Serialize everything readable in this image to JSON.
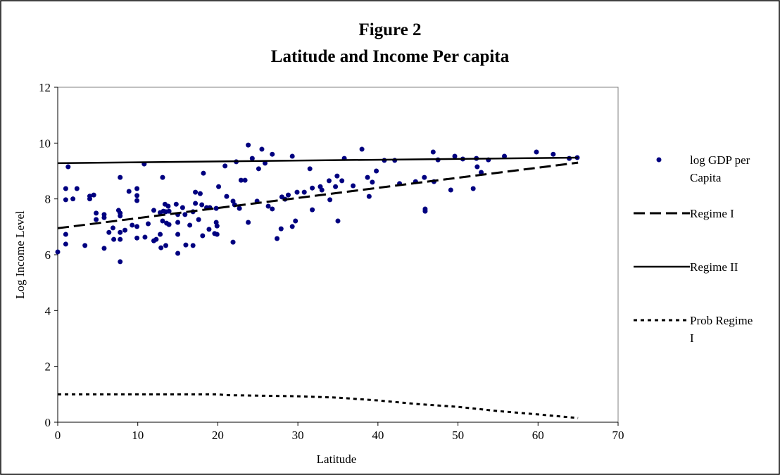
{
  "chart_data": {
    "type": "scatter",
    "title": "Figure 2",
    "subtitle": "Latitude and Income Per capita",
    "x_label": "Latitude",
    "y_label": "Log Income Level",
    "xlim": [
      0,
      70
    ],
    "xticks": [
      0,
      10,
      20,
      30,
      40,
      50,
      60,
      70
    ],
    "ylim": [
      0,
      12
    ],
    "yticks": [
      0,
      2,
      4,
      6,
      8,
      10,
      12
    ],
    "grid": false,
    "legend": "right",
    "series": [
      {
        "name": "log GDP per Capita",
        "kind": "scatter",
        "color": "#000080",
        "x": [
          0,
          1.0,
          1.0,
          1.0,
          1.0,
          1.3,
          1.9,
          2.4,
          3.4,
          4.0,
          4.0,
          4.5,
          4.8,
          4.8,
          5.8,
          5.8,
          5.8,
          6.4,
          6.9,
          7.0,
          7.6,
          7.8,
          7.8,
          7.8,
          7.8,
          7.8,
          7.8,
          8.4,
          8.9,
          9.3,
          9.9,
          9.9,
          9.9,
          9.9,
          9.9,
          10.8,
          10.9,
          11.3,
          12.0,
          12.0,
          12.3,
          12.8,
          12.8,
          12.9,
          13.1,
          13.1,
          13.2,
          13.4,
          13.5,
          13.5,
          13.6,
          13.8,
          13.9,
          13.9,
          14.8,
          15.0,
          15.0,
          15.0,
          15.0,
          15.6,
          15.9,
          16.0,
          16.5,
          16.9,
          16.9,
          17.2,
          17.2,
          17.6,
          17.8,
          18.0,
          18.1,
          18.2,
          18.6,
          18.9,
          19.0,
          19.6,
          19.8,
          19.8,
          19.9,
          19.9,
          20.1,
          20.9,
          21.1,
          21.9,
          21.9,
          22.1,
          22.3,
          22.7,
          22.9,
          23.4,
          23.8,
          23.8,
          24.3,
          24.9,
          25.1,
          25.5,
          25.9,
          26.3,
          26.8,
          26.8,
          27.4,
          27.9,
          28.0,
          28.4,
          28.8,
          29.3,
          29.3,
          29.7,
          29.9,
          30.8,
          31.5,
          31.8,
          31.8,
          32.8,
          33.0,
          33.9,
          34.0,
          34.7,
          34.9,
          35.0,
          35.5,
          35.8,
          36.9,
          38.0,
          38.7,
          38.9,
          39.3,
          39.8,
          40.8,
          42.1,
          42.7,
          44.7,
          45.8,
          45.9,
          45.9,
          46.9,
          47.0,
          47.5,
          49.1,
          49.6,
          50.6,
          51.9,
          52.3,
          52.4,
          52.9,
          53.8,
          55.8,
          59.8,
          61.9,
          63.9,
          64.9
        ],
        "values": [
          6.1,
          8.37,
          7.97,
          6.73,
          6.38,
          9.15,
          8.0,
          8.37,
          6.33,
          8.1,
          8.0,
          8.14,
          7.49,
          7.26,
          7.44,
          7.33,
          6.23,
          6.8,
          6.96,
          6.55,
          7.59,
          8.77,
          7.49,
          7.39,
          6.8,
          6.55,
          5.75,
          6.88,
          8.27,
          7.06,
          8.37,
          8.12,
          7.94,
          7.01,
          6.6,
          9.25,
          6.63,
          7.11,
          6.5,
          7.59,
          6.55,
          7.51,
          6.73,
          6.25,
          8.77,
          7.21,
          7.56,
          7.81,
          7.54,
          6.33,
          7.13,
          7.74,
          7.56,
          7.08,
          7.81,
          7.44,
          6.73,
          6.05,
          7.16,
          7.69,
          7.44,
          6.35,
          7.06,
          7.54,
          6.33,
          8.24,
          7.84,
          7.26,
          8.19,
          7.79,
          6.68,
          8.92,
          7.69,
          6.91,
          7.69,
          6.76,
          7.66,
          7.16,
          7.03,
          6.73,
          8.44,
          9.18,
          8.09,
          7.92,
          6.45,
          7.79,
          9.33,
          7.66,
          8.67,
          8.67,
          9.93,
          7.16,
          9.45,
          7.92,
          9.08,
          9.78,
          9.28,
          7.74,
          9.6,
          7.64,
          6.58,
          6.93,
          8.07,
          7.99,
          8.14,
          7.01,
          9.53,
          7.21,
          8.24,
          8.24,
          9.08,
          7.61,
          8.39,
          8.44,
          8.32,
          8.65,
          7.97,
          8.44,
          8.82,
          7.21,
          8.65,
          9.45,
          8.47,
          9.78,
          8.77,
          8.09,
          8.6,
          9.0,
          9.38,
          9.38,
          8.55,
          8.62,
          8.77,
          7.64,
          7.56,
          9.68,
          8.62,
          9.4,
          8.32,
          9.53,
          9.43,
          8.37,
          9.45,
          9.15,
          8.95,
          9.4,
          9.53,
          9.68,
          9.6,
          9.45,
          9.48
        ]
      },
      {
        "name": "Regime I",
        "kind": "line",
        "color": "#000000",
        "dash": "long",
        "x": [
          0,
          65
        ],
        "values": [
          6.95,
          9.3
        ]
      },
      {
        "name": "Regime II",
        "kind": "line",
        "color": "#000000",
        "dash": "solid",
        "x": [
          0,
          65
        ],
        "values": [
          9.28,
          9.48
        ]
      },
      {
        "name": "Prob Regime I",
        "kind": "line",
        "color": "#000000",
        "dash": "dotted",
        "x": [
          0,
          20,
          21,
          30,
          35,
          40,
          45,
          50,
          55,
          60,
          65
        ],
        "values": [
          1.0,
          1.0,
          0.97,
          0.93,
          0.88,
          0.78,
          0.65,
          0.55,
          0.4,
          0.28,
          0.15
        ]
      }
    ]
  }
}
